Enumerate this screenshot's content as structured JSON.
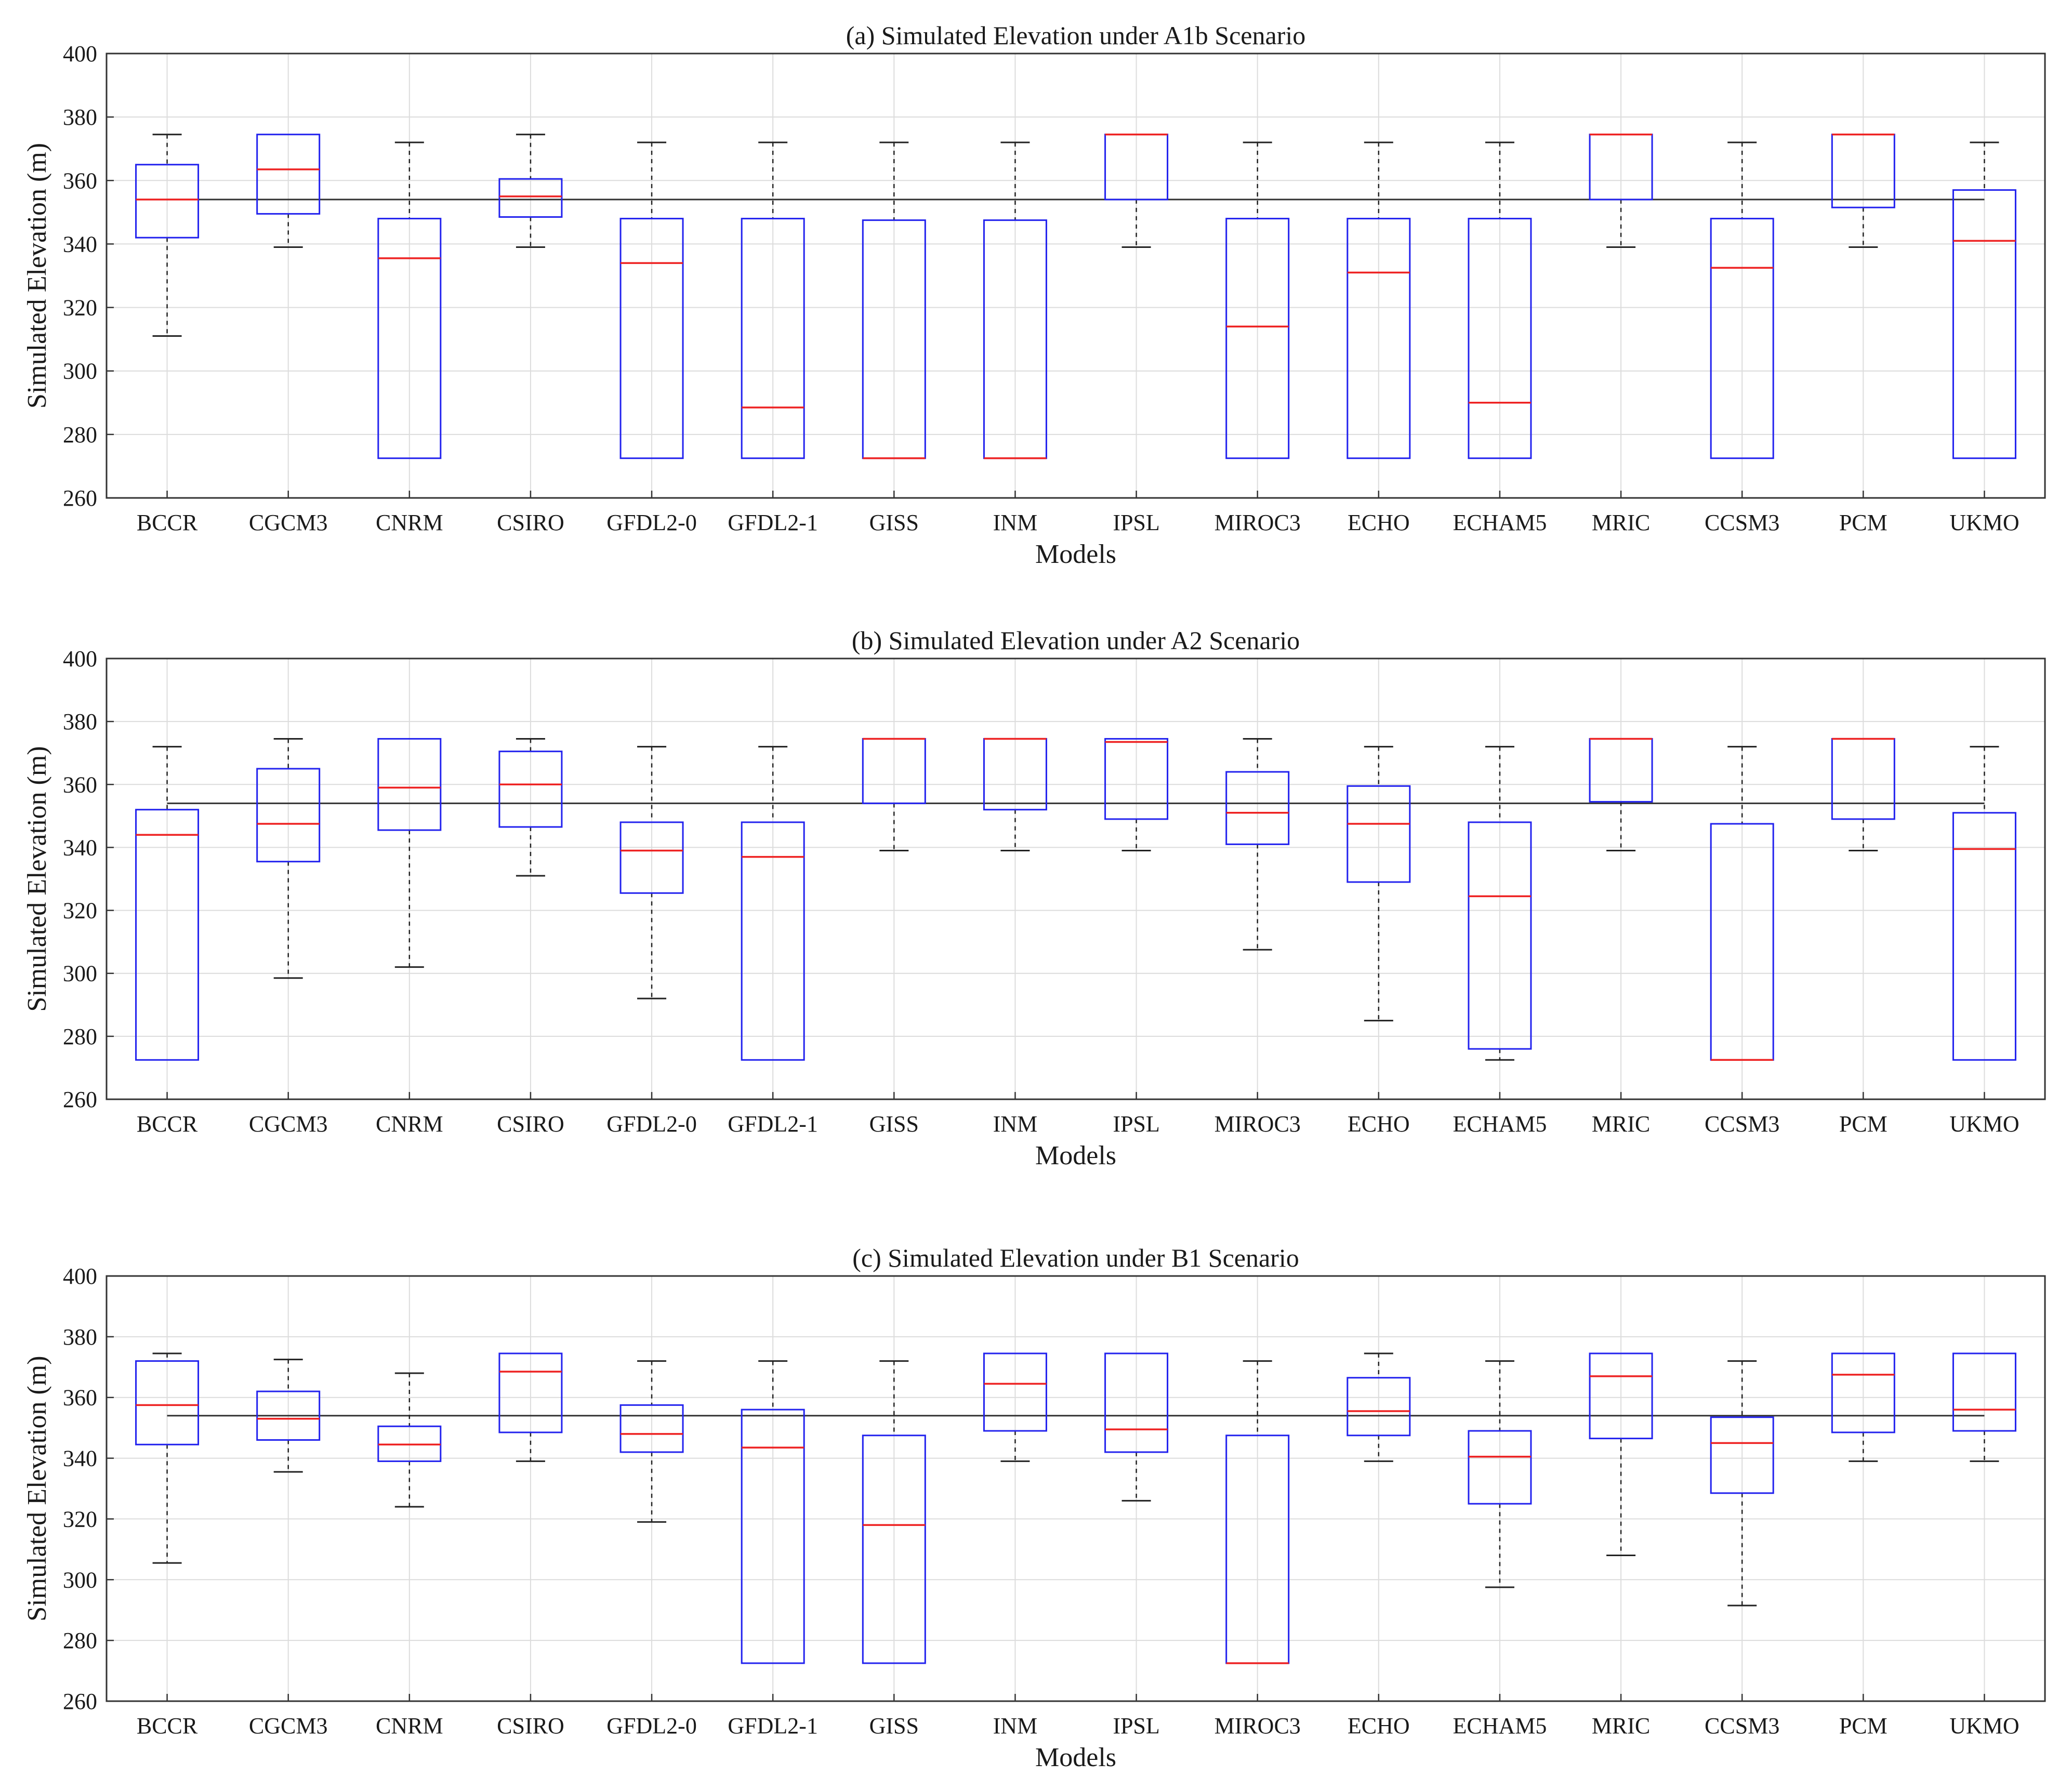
{
  "chart_data": [
    {
      "type": "boxplot",
      "title": "(a) Simulated Elevation under A1b Scenario",
      "xlabel": "Models",
      "ylabel": "Simulated Elevation (m)",
      "ylim": [
        260,
        400
      ],
      "yticks": [
        260,
        280,
        300,
        320,
        340,
        360,
        380,
        400
      ],
      "grid": true,
      "reference_line": 354,
      "categories": [
        "BCCR",
        "CGCM3",
        "CNRM",
        "CSIRO",
        "GFDL2-0",
        "GFDL2-1",
        "GISS",
        "INM",
        "IPSL",
        "MIROC3",
        "ECHO",
        "ECHAM5",
        "MRIC",
        "CCSM3",
        "PCM",
        "UKMO"
      ],
      "boxes": [
        {
          "min": 311,
          "q1": 342,
          "median": 354,
          "q3": 365,
          "max": 374.5
        },
        {
          "min": 339,
          "q1": 349.5,
          "median": 363.5,
          "q3": 374.5,
          "max": 374.5
        },
        {
          "min": 272.5,
          "q1": 272.5,
          "median": 335.5,
          "q3": 348,
          "max": 372
        },
        {
          "min": 339,
          "q1": 348.5,
          "median": 355,
          "q3": 360.5,
          "max": 374.5
        },
        {
          "min": 272.5,
          "q1": 272.5,
          "median": 334,
          "q3": 348,
          "max": 372
        },
        {
          "min": 272.5,
          "q1": 272.5,
          "median": 288.5,
          "q3": 348,
          "max": 372
        },
        {
          "min": 272.5,
          "q1": 272.5,
          "median": 272.5,
          "q3": 347.5,
          "max": 372
        },
        {
          "min": 272.5,
          "q1": 272.5,
          "median": 272.5,
          "q3": 347.5,
          "max": 372
        },
        {
          "min": 339,
          "q1": 354,
          "median": 374.5,
          "q3": 374.5,
          "max": 374.5
        },
        {
          "min": 272.5,
          "q1": 272.5,
          "median": 314,
          "q3": 348,
          "max": 372
        },
        {
          "min": 272.5,
          "q1": 272.5,
          "median": 331,
          "q3": 348,
          "max": 372
        },
        {
          "min": 272.5,
          "q1": 272.5,
          "median": 290,
          "q3": 348,
          "max": 372
        },
        {
          "min": 339,
          "q1": 354,
          "median": 374.5,
          "q3": 374.5,
          "max": 374.5
        },
        {
          "min": 272.5,
          "q1": 272.5,
          "median": 332.5,
          "q3": 348,
          "max": 372
        },
        {
          "min": 339,
          "q1": 351.5,
          "median": 374.5,
          "q3": 374.5,
          "max": 374.5
        },
        {
          "min": 272.5,
          "q1": 272.5,
          "median": 341,
          "q3": 357,
          "max": 372
        }
      ]
    },
    {
      "type": "boxplot",
      "title": "(b) Simulated Elevation under A2 Scenario",
      "xlabel": "Models",
      "ylabel": "Simulated Elevation (m)",
      "ylim": [
        260,
        400
      ],
      "yticks": [
        260,
        280,
        300,
        320,
        340,
        360,
        380,
        400
      ],
      "grid": true,
      "reference_line": 354,
      "categories": [
        "BCCR",
        "CGCM3",
        "CNRM",
        "CSIRO",
        "GFDL2-0",
        "GFDL2-1",
        "GISS",
        "INM",
        "IPSL",
        "MIROC3",
        "ECHO",
        "ECHAM5",
        "MRIC",
        "CCSM3",
        "PCM",
        "UKMO"
      ],
      "boxes": [
        {
          "min": 272.5,
          "q1": 272.5,
          "median": 344,
          "q3": 352,
          "max": 372
        },
        {
          "min": 298.5,
          "q1": 335.5,
          "median": 347.5,
          "q3": 365,
          "max": 374.5
        },
        {
          "min": 302,
          "q1": 345.5,
          "median": 359,
          "q3": 374.5,
          "max": 374.5
        },
        {
          "min": 331,
          "q1": 346.5,
          "median": 360,
          "q3": 370.5,
          "max": 374.5
        },
        {
          "min": 292,
          "q1": 325.5,
          "median": 339,
          "q3": 348,
          "max": 372
        },
        {
          "min": 272.5,
          "q1": 272.5,
          "median": 337,
          "q3": 348,
          "max": 372
        },
        {
          "min": 339,
          "q1": 354,
          "median": 374.5,
          "q3": 374.5,
          "max": 374.5
        },
        {
          "min": 339,
          "q1": 352,
          "median": 374.5,
          "q3": 374.5,
          "max": 374.5
        },
        {
          "min": 339,
          "q1": 349,
          "median": 373.5,
          "q3": 374.5,
          "max": 374.5
        },
        {
          "min": 307.5,
          "q1": 341,
          "median": 351,
          "q3": 364,
          "max": 374.5
        },
        {
          "min": 285,
          "q1": 329,
          "median": 347.5,
          "q3": 359.5,
          "max": 372
        },
        {
          "min": 272.5,
          "q1": 276,
          "median": 324.5,
          "q3": 348,
          "max": 372
        },
        {
          "min": 339,
          "q1": 354.5,
          "median": 374.5,
          "q3": 374.5,
          "max": 374.5
        },
        {
          "min": 272.5,
          "q1": 272.5,
          "median": 272.5,
          "q3": 347.5,
          "max": 372
        },
        {
          "min": 339,
          "q1": 349,
          "median": 374.5,
          "q3": 374.5,
          "max": 374.5
        },
        {
          "min": 272.5,
          "q1": 272.5,
          "median": 339.5,
          "q3": 351,
          "max": 372
        }
      ]
    },
    {
      "type": "boxplot",
      "title": "(c) Simulated Elevation under B1 Scenario",
      "xlabel": "Models",
      "ylabel": "Simulated Elevation (m)",
      "ylim": [
        260,
        400
      ],
      "yticks": [
        260,
        280,
        300,
        320,
        340,
        360,
        380,
        400
      ],
      "grid": true,
      "reference_line": 354,
      "categories": [
        "BCCR",
        "CGCM3",
        "CNRM",
        "CSIRO",
        "GFDL2-0",
        "GFDL2-1",
        "GISS",
        "INM",
        "IPSL",
        "MIROC3",
        "ECHO",
        "ECHAM5",
        "MRIC",
        "CCSM3",
        "PCM",
        "UKMO"
      ],
      "boxes": [
        {
          "min": 305.5,
          "q1": 344.5,
          "median": 357.5,
          "q3": 372,
          "max": 374.5
        },
        {
          "min": 335.5,
          "q1": 346,
          "median": 353,
          "q3": 362,
          "max": 372.5
        },
        {
          "min": 324,
          "q1": 339,
          "median": 344.5,
          "q3": 350.5,
          "max": 368
        },
        {
          "min": 339,
          "q1": 348.5,
          "median": 368.5,
          "q3": 374.5,
          "max": 374.5
        },
        {
          "min": 319,
          "q1": 342,
          "median": 348,
          "q3": 357.5,
          "max": 372
        },
        {
          "min": 272.5,
          "q1": 272.5,
          "median": 343.5,
          "q3": 356,
          "max": 372
        },
        {
          "min": 272.5,
          "q1": 272.5,
          "median": 318,
          "q3": 347.5,
          "max": 372
        },
        {
          "min": 339,
          "q1": 349,
          "median": 364.5,
          "q3": 374.5,
          "max": 374.5
        },
        {
          "min": 326,
          "q1": 342,
          "median": 349.5,
          "q3": 374.5,
          "max": 374.5
        },
        {
          "min": 272.5,
          "q1": 272.5,
          "median": 272.5,
          "q3": 347.5,
          "max": 372
        },
        {
          "min": 339,
          "q1": 347.5,
          "median": 355.5,
          "q3": 366.5,
          "max": 374.5
        },
        {
          "min": 297.5,
          "q1": 325,
          "median": 340.5,
          "q3": 349,
          "max": 372
        },
        {
          "min": 308,
          "q1": 346.5,
          "median": 367,
          "q3": 374.5,
          "max": 374.5
        },
        {
          "min": 291.5,
          "q1": 328.5,
          "median": 345,
          "q3": 353.5,
          "max": 372
        },
        {
          "min": 339,
          "q1": 348.5,
          "median": 367.5,
          "q3": 374.5,
          "max": 374.5
        },
        {
          "min": 339,
          "q1": 349,
          "median": 356,
          "q3": 374.5,
          "max": 374.5
        }
      ]
    }
  ],
  "colors": {
    "box": "#2222ee",
    "median": "#ee2222",
    "whisker": "#222222",
    "grid": "#dcdcdc",
    "axes": "#333333",
    "reference_line": "#333333"
  }
}
